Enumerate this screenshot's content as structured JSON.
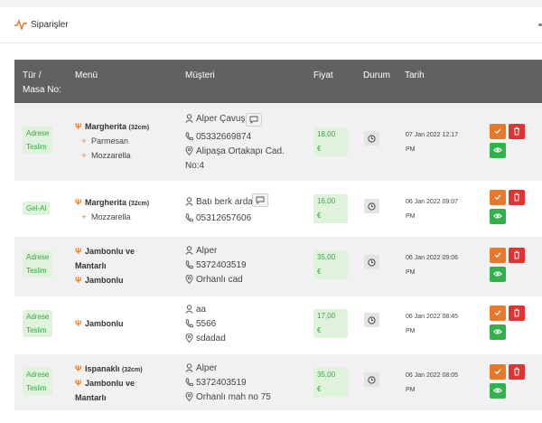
{
  "header": {
    "title": "Siparişler",
    "icon": "activity-icon"
  },
  "table": {
    "columns": {
      "type_line1": "Tür /",
      "type_line2": "Masa No:",
      "menu": "Menü",
      "customer": "Müşteri",
      "price": "Fiyat",
      "status": "Durum",
      "date": "Tarih"
    },
    "rows": [
      {
        "type_line1": "Adrese",
        "type_line2": "Teslim",
        "items": [
          {
            "name": "Margherita",
            "size": "(32cm)"
          }
        ],
        "extras": [
          "Parmesan",
          "Mozzarella"
        ],
        "customer_name": "Alper Çavuş",
        "phone": "05332669874",
        "address_line1": "Alipaşa Ortakapı Cad.",
        "address_line2": "No:4",
        "price_line1": "18,00",
        "price_line2": "€",
        "date_line1": "07 Jan 2022 12:17",
        "date_line2": "PM"
      },
      {
        "type_line1": "Gel-Al",
        "items": [
          {
            "name": "Margherita",
            "size": "(32cm)"
          }
        ],
        "extras": [
          "Mozzarella"
        ],
        "customer_name": "Batı berk arda",
        "phone": "05312657606",
        "price_line1": "16,00",
        "price_line2": "€",
        "date_line1": "06 Jan 2022 09:07",
        "date_line2": "PM"
      },
      {
        "type_line1": "Adrese",
        "type_line2": "Teslim",
        "item1_line1": "Jambonlu ve",
        "item1_line2": "Mantarlı",
        "item2": "Jambonlu",
        "customer_name": "Alper",
        "phone": "5372403519",
        "address_line1": "Orhanlı cad",
        "price_line1": "35,00",
        "price_line2": "€",
        "date_line1": "06 Jan 2022 09:06",
        "date_line2": "PM"
      },
      {
        "type_line1": "Adrese",
        "type_line2": "Teslim",
        "item1": "Jambonlu",
        "customer_name": "aa",
        "phone": "5566",
        "address_line1": "sdadad",
        "price_line1": "17,00",
        "price_line2": "€",
        "date_line1": "06 Jan 2022 08:45",
        "date_line2": "PM"
      },
      {
        "type_line1": "Adrese",
        "type_line2": "Teslim",
        "item1": "Ispanaklı",
        "item1_size": "(32cm)",
        "item2_line1": "Jambonlu ve",
        "item2_line2": "Mantarlı",
        "customer_name": "Alper",
        "phone": "5372403519",
        "address_line1": "Orhanlı mah no 75",
        "price_line1": "35,00",
        "price_line2": "€",
        "date_line1": "06 Jan 2022 08:05",
        "date_line2": "PM"
      }
    ]
  },
  "colors": {
    "header_bg": "#616161",
    "badge_bg": "#dff3dc",
    "badge_text": "#3aa445",
    "accent_orange": "#e8782a",
    "danger_red": "#e03434",
    "success_green": "#34b14f"
  }
}
